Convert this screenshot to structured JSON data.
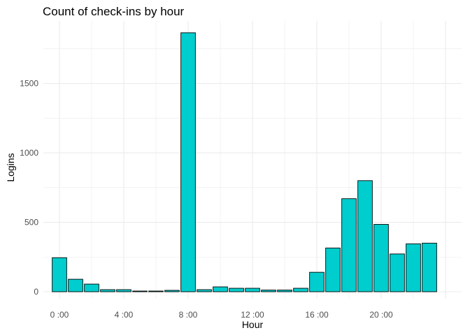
{
  "chart_data": {
    "type": "bar",
    "title": "Count of check-ins by hour",
    "xlabel": "Hour",
    "ylabel": "Logins",
    "x": [
      0,
      1,
      2,
      3,
      4,
      5,
      6,
      7,
      8,
      9,
      10,
      11,
      12,
      13,
      14,
      15,
      16,
      17,
      18,
      19,
      20,
      21,
      22,
      23
    ],
    "values": [
      245,
      90,
      55,
      15,
      15,
      5,
      5,
      10,
      1865,
      15,
      35,
      25,
      25,
      12,
      12,
      25,
      140,
      315,
      670,
      800,
      485,
      272,
      345,
      350
    ],
    "x_ticks": [
      {
        "value": 0,
        "label": "0 :00"
      },
      {
        "value": 4,
        "label": "4 :00"
      },
      {
        "value": 8,
        "label": "8 :00"
      },
      {
        "value": 12,
        "label": "12 :00"
      },
      {
        "value": 16,
        "label": "16 :00"
      },
      {
        "value": 20,
        "label": "20 :00"
      }
    ],
    "y_ticks": [
      0,
      500,
      1000,
      1500
    ],
    "ylim": [
      0,
      1950
    ],
    "xlim": [
      -1,
      25
    ],
    "bar_fill": "#00CDCD",
    "bar_stroke": "#000000",
    "grid": true,
    "grid_color": "#ebebeb",
    "legend": "none"
  }
}
